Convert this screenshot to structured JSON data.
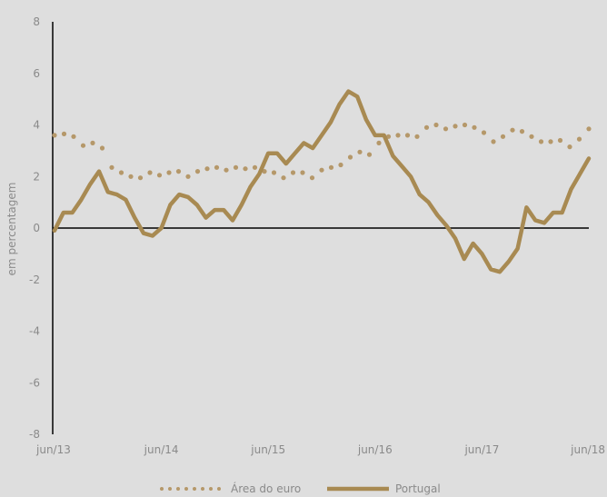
{
  "chart_data": {
    "type": "line",
    "ylabel": "em percentagem",
    "ylim": [
      -8,
      8
    ],
    "y_ticks": [
      "8",
      "6",
      "4",
      "2",
      "0",
      "-2",
      "-4",
      "-6",
      "-8"
    ],
    "x_tick_labels": [
      "jun/13",
      "jun/14",
      "jun/15",
      "jun/16",
      "jun/17",
      "jun/18"
    ],
    "legend_position": "bottom",
    "series": [
      {
        "name": "Área do euro",
        "style": "dotted",
        "color": "#b5986a",
        "values": [
          3.6,
          3.65,
          3.55,
          3.2,
          3.3,
          3.1,
          2.35,
          2.15,
          2.0,
          1.95,
          2.15,
          2.05,
          2.15,
          2.2,
          2.0,
          2.2,
          2.3,
          2.35,
          2.25,
          2.35,
          2.3,
          2.35,
          2.2,
          2.15,
          1.95,
          2.15,
          2.15,
          1.95,
          2.25,
          2.35,
          2.45,
          2.75,
          2.95,
          2.85,
          3.3,
          3.55,
          3.6,
          3.6,
          3.55,
          3.9,
          4.0,
          3.85,
          3.95,
          4.0,
          3.9,
          3.7,
          3.35,
          3.55,
          3.8,
          3.75,
          3.55,
          3.35,
          3.35,
          3.4,
          3.15,
          3.45,
          3.85
        ]
      },
      {
        "name": "Portugal",
        "style": "solid",
        "color": "#a88a52",
        "values": [
          -0.1,
          0.6,
          0.6,
          1.1,
          1.7,
          2.2,
          1.4,
          1.3,
          1.1,
          0.4,
          -0.2,
          -0.3,
          0.0,
          0.9,
          1.3,
          1.2,
          0.9,
          0.4,
          0.7,
          0.7,
          0.3,
          0.9,
          1.6,
          2.1,
          2.9,
          2.9,
          2.5,
          2.9,
          3.3,
          3.1,
          3.6,
          4.1,
          4.8,
          5.3,
          5.1,
          4.2,
          3.6,
          3.6,
          2.8,
          2.4,
          2.0,
          1.3,
          1.0,
          0.5,
          0.1,
          -0.4,
          -1.2,
          -0.6,
          -1.0,
          -1.6,
          -1.7,
          -1.3,
          -0.8,
          0.8,
          0.3,
          0.2,
          0.6,
          0.6,
          1.5,
          2.1,
          2.7
        ]
      }
    ]
  }
}
